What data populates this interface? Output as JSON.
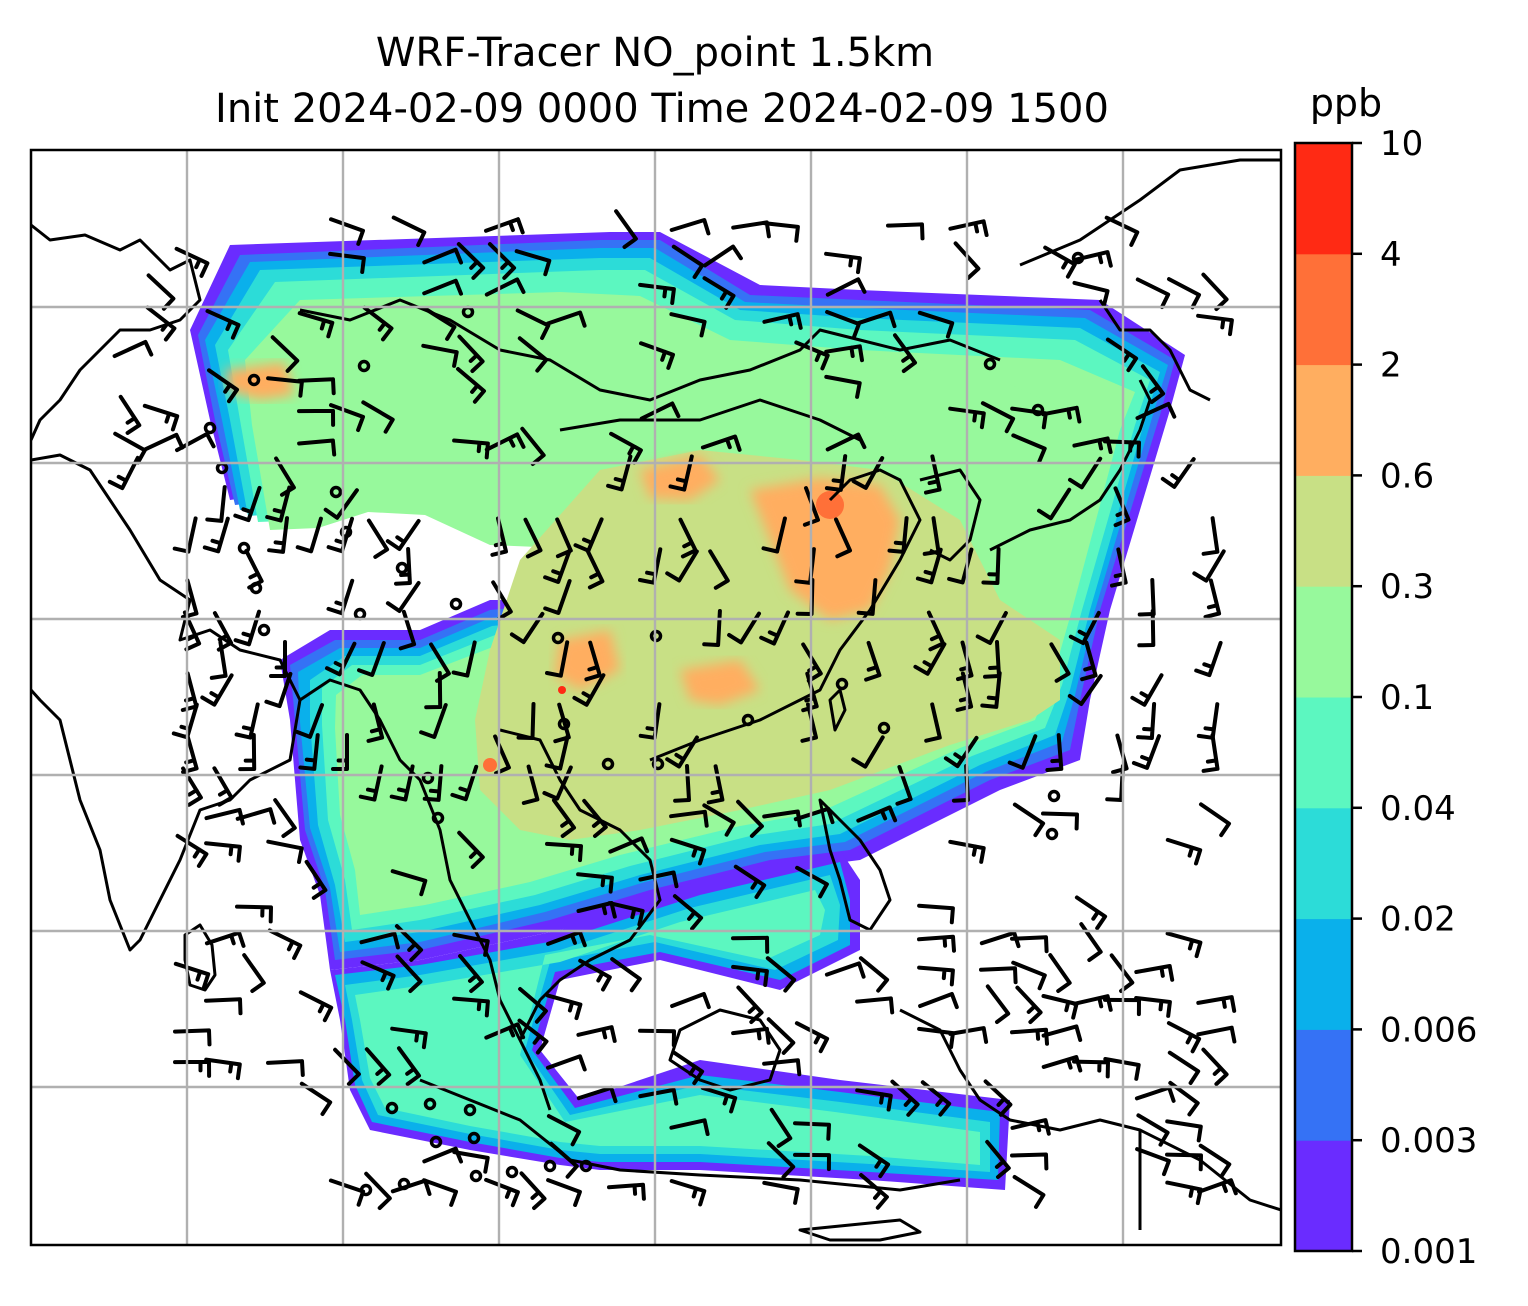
{
  "title_line1": "WRF-Tracer NO_point 1.5km",
  "title_line2": "Init 2024-02-09 0000 Time 2024-02-09 1500",
  "colorbar": {
    "unit": "ppb",
    "ticks": [
      "0.001",
      "0.003",
      "0.006",
      "0.02",
      "0.04",
      "0.1",
      "0.3",
      "0.6",
      "2",
      "4",
      "10"
    ],
    "colors": [
      "#6a2cff",
      "#3572f5",
      "#0ab0eb",
      "#2cdcd8",
      "#5cf7c0",
      "#97f99c",
      "#c8e085",
      "#ffae60",
      "#ff7038",
      "#ff2a14"
    ]
  },
  "map": {
    "field": "NO_point tracer concentration",
    "gridlines": true,
    "wind_barbs": true
  }
}
